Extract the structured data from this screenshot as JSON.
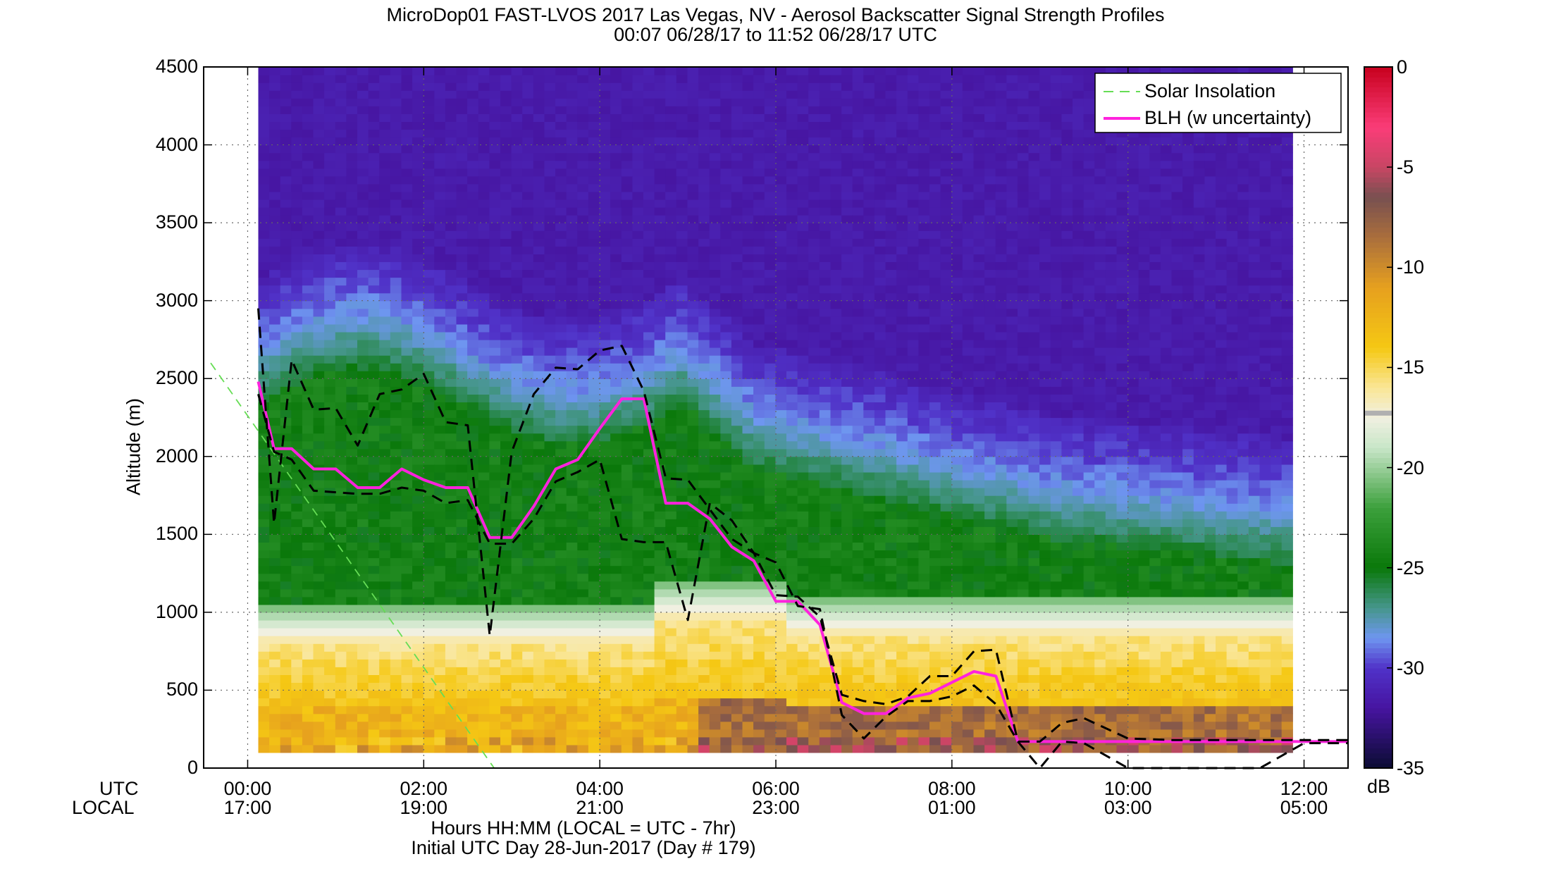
{
  "colors": {
    "blh": "#ff22dd",
    "solar": "#66dd55",
    "uncertainty": "#000000",
    "grid": "#666666"
  },
  "chart_data": {
    "type": "heatmap",
    "title_line1": "MicroDop01 FAST-LVOS 2017 Las Vegas, NV - Aerosol Backscatter Signal Strength Profiles",
    "title_line2": "00:07 06/28/17 to 11:52 06/28/17  UTC",
    "ylabel": "Altitude (m)",
    "xlabel_line1": "Hours HH:MM  (LOCAL = UTC - 7hr)",
    "xlabel_line2": "Initial UTC Day 28-Jun-2017 (Day # 179)",
    "x_row_labels": [
      "UTC",
      "LOCAL"
    ],
    "x_ticks_utc": [
      "00:00",
      "02:00",
      "04:00",
      "06:00",
      "08:00",
      "10:00",
      "12:00"
    ],
    "x_ticks_local": [
      "17:00",
      "19:00",
      "21:00",
      "23:00",
      "01:00",
      "03:00",
      "05:00"
    ],
    "x_tick_hours": [
      0,
      2,
      4,
      6,
      8,
      10,
      12
    ],
    "xlim_hours": [
      -0.5,
      12.5
    ],
    "ylim": [
      0,
      4500
    ],
    "y_ticks": [
      0,
      500,
      1000,
      1500,
      2000,
      2500,
      3000,
      3500,
      4000,
      4500
    ],
    "colorbar": {
      "label": "dB",
      "range": [
        -35,
        0
      ],
      "ticks": [
        0,
        -5,
        -10,
        -15,
        -20,
        -25,
        -30,
        -35
      ]
    },
    "grid": true,
    "legend_position": "top-right",
    "legend": [
      "Solar Insolation",
      "BLH (w uncertainty)"
    ],
    "series": [
      {
        "name": "BLH (w uncertainty)",
        "x": [
          0.12,
          0.3,
          0.5,
          0.75,
          1.0,
          1.25,
          1.5,
          1.75,
          2.0,
          2.25,
          2.5,
          2.75,
          3.0,
          3.25,
          3.5,
          3.75,
          4.0,
          4.25,
          4.5,
          4.75,
          5.0,
          5.25,
          5.5,
          5.75,
          6.0,
          6.25,
          6.5,
          6.75,
          7.0,
          7.25,
          7.5,
          7.75,
          8.0,
          8.25,
          8.5,
          8.75,
          9.0,
          9.25,
          9.5,
          10.0,
          10.5,
          11.0,
          11.5,
          12.0,
          12.5
        ],
        "y": [
          2480,
          2050,
          2050,
          1920,
          1920,
          1800,
          1800,
          1920,
          1850,
          1800,
          1800,
          1480,
          1480,
          1680,
          1920,
          1980,
          2180,
          2370,
          2370,
          1700,
          1700,
          1600,
          1420,
          1330,
          1070,
          1070,
          920,
          420,
          350,
          350,
          450,
          480,
          550,
          620,
          590,
          170,
          170,
          170,
          170,
          170,
          170,
          170,
          170,
          170,
          170
        ]
      },
      {
        "name": "",
        "x": [
          0.12,
          0.3,
          0.5,
          0.75,
          1.0,
          1.25,
          1.5,
          1.75,
          2.0,
          2.25,
          2.5,
          2.75,
          3.0,
          3.25,
          3.5,
          3.75,
          4.0,
          4.25,
          4.5,
          4.75,
          5.0,
          5.25,
          5.5,
          5.75,
          6.0,
          6.25,
          6.5,
          6.75,
          7.0,
          7.25,
          7.5,
          7.75,
          8.0,
          8.25,
          8.5,
          8.75,
          9.0,
          9.25,
          9.5,
          10.0,
          10.5,
          11.0,
          11.5,
          12.0,
          12.5
        ],
        "y": [
          2950,
          1570,
          2620,
          2300,
          2310,
          2070,
          2400,
          2430,
          2530,
          2220,
          2200,
          850,
          2030,
          2400,
          2570,
          2560,
          2680,
          2710,
          2420,
          1860,
          1850,
          1660,
          1470,
          1380,
          1110,
          1100,
          970,
          470,
          430,
          410,
          460,
          590,
          590,
          750,
          760,
          170,
          170,
          290,
          320,
          190,
          180,
          180,
          180,
          180,
          180
        ]
      },
      {
        "name": "",
        "x": [
          0.12,
          0.3,
          0.5,
          0.75,
          1.0,
          1.25,
          1.5,
          1.75,
          2.0,
          2.25,
          2.5,
          2.75,
          3.0,
          3.25,
          3.5,
          3.75,
          4.0,
          4.25,
          4.5,
          4.75,
          5.0,
          5.25,
          5.5,
          5.75,
          6.0,
          6.25,
          6.5,
          6.75,
          7.0,
          7.25,
          7.5,
          7.75,
          8.0,
          8.25,
          8.5,
          8.75,
          9.0,
          9.25,
          9.5,
          10.0,
          10.5,
          11.0,
          11.5,
          12.0,
          12.5
        ],
        "y": [
          2400,
          2030,
          1980,
          1780,
          1770,
          1760,
          1760,
          1800,
          1780,
          1700,
          1720,
          1440,
          1440,
          1600,
          1840,
          1900,
          1980,
          1470,
          1450,
          1450,
          950,
          1700,
          1590,
          1380,
          1320,
          1040,
          1020,
          340,
          190,
          330,
          430,
          430,
          460,
          530,
          410,
          170,
          0,
          170,
          160,
          0,
          0,
          0,
          0,
          160,
          160
        ]
      },
      {
        "name": "Solar Insolation",
        "x": [
          -0.42,
          2.8
        ],
        "y": [
          2600,
          0
        ]
      }
    ]
  }
}
